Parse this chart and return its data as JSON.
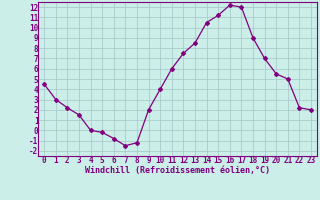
{
  "x": [
    0,
    1,
    2,
    3,
    4,
    5,
    6,
    7,
    8,
    9,
    10,
    11,
    12,
    13,
    14,
    15,
    16,
    17,
    18,
    19,
    20,
    21,
    22,
    23
  ],
  "y": [
    4.5,
    3.0,
    2.2,
    1.5,
    0.0,
    -0.2,
    -0.8,
    -1.5,
    -1.2,
    2.0,
    4.0,
    6.0,
    7.5,
    8.5,
    10.5,
    11.2,
    12.2,
    12.0,
    9.0,
    7.0,
    5.5,
    5.0,
    2.2,
    2.0
  ],
  "line_color": "#800080",
  "marker": "D",
  "marker_size": 2,
  "bg_color": "#cceee8",
  "grid_color": "#aacccc",
  "xlabel": "Windchill (Refroidissement éolien,°C)",
  "xlabel_color": "#800080",
  "tick_color": "#800080",
  "label_color": "#800080",
  "ylim": [
    -2.5,
    12.5
  ],
  "xlim": [
    -0.5,
    23.5
  ],
  "yticks": [
    -2,
    -1,
    0,
    1,
    2,
    3,
    4,
    5,
    6,
    7,
    8,
    9,
    10,
    11,
    12
  ],
  "xticks": [
    0,
    1,
    2,
    3,
    4,
    5,
    6,
    7,
    8,
    9,
    10,
    11,
    12,
    13,
    14,
    15,
    16,
    17,
    18,
    19,
    20,
    21,
    22,
    23
  ],
  "tick_fontsize": 5.5,
  "xlabel_fontsize": 6.0
}
